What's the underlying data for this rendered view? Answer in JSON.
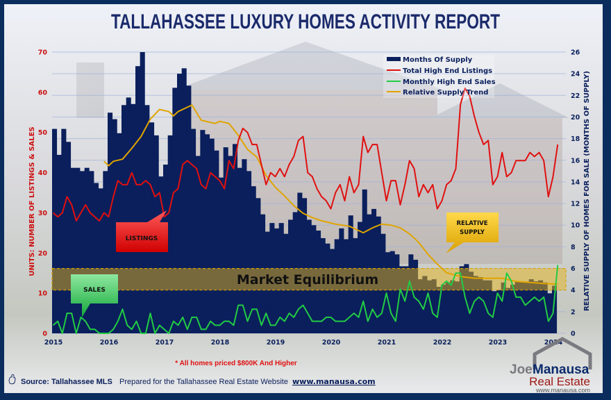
{
  "title": "TALLAHASSEE LUXURY HOMES ACTIVITY REPORT",
  "colors": {
    "frame": "#0b2d5e",
    "bars": "#0a1f5c",
    "listings": "#e01010",
    "sales": "#22cc44",
    "trend": "#e0a400",
    "band": "#e6b41e",
    "left_axis": "#cc1010",
    "right_axis": "#0a1f5c"
  },
  "chart_data": {
    "type": "bar+line",
    "xlabel": "",
    "x_ticks": [
      "2015",
      "2016",
      "2017",
      "2018",
      "2019",
      "2020",
      "2021",
      "2022",
      "2023",
      "2024"
    ],
    "left_axis": {
      "label": "UNITS: NUMBER OF LISTINGS & SALES",
      "ylim": [
        0,
        70
      ],
      "ticks": [
        "0",
        "10",
        "20",
        "30",
        "40",
        "50",
        "60",
        "70"
      ]
    },
    "right_axis": {
      "label": "RELATIVE SUPPLY OF HOMES FOR SALE (MONTHS OF SUPPLY)",
      "ylim": [
        0,
        26
      ],
      "ticks": [
        "0",
        "2",
        "4",
        "6",
        "8",
        "10",
        "12",
        "14",
        "16",
        "18",
        "20",
        "22",
        "24",
        "26"
      ]
    },
    "grid": true,
    "legend_position": "top-right",
    "series": [
      {
        "name": "Months Of Supply",
        "type": "bar",
        "axis": "right",
        "color": "#0a1f5c",
        "values_by_year": {
          "2015": [
            18.9,
            16.5,
            18.9,
            17.7,
            15.3,
            15.3,
            15.0,
            15.3,
            15.0,
            13.9,
            13.4,
            15.0
          ],
          "2016": [
            20.4,
            19.8,
            18.5,
            21.1,
            21.8,
            21.2,
            24.7,
            26.0,
            21.1,
            19.5,
            18.3,
            14.5
          ],
          "2017": [
            15.6,
            18.3,
            22.7,
            24.0,
            24.5,
            22.9,
            18.9,
            16.4,
            18.8,
            18.4,
            18.0,
            16.9
          ],
          "2018": [
            14.4,
            17.2,
            16.4,
            17.5,
            15.3,
            16.1,
            15.0,
            13.6,
            12.5,
            11.0,
            9.4,
            10.2
          ],
          "2019": [
            9.7,
            10.2,
            9.2,
            10.5,
            11.2,
            13.0,
            12.5,
            10.5,
            10.0,
            9.5,
            8.8,
            8.3
          ],
          "2020": [
            7.8,
            8.7,
            9.7,
            8.7,
            10.9,
            8.8,
            10.3,
            13.3,
            11.0,
            11.5,
            10.8,
            9.2
          ],
          "2021": [
            7.5,
            7.6,
            7.3,
            6.2,
            6.2,
            7.3,
            6.8,
            5.0,
            5.3,
            4.9,
            5.0,
            4.3
          ],
          "2022": [
            4.5,
            4.7,
            4.9,
            4.8,
            6.2,
            6.4,
            5.7,
            5.3,
            5.2,
            4.9,
            4.9,
            3.9
          ],
          "2023": [
            4.0,
            4.7,
            4.2,
            4.5,
            4.8,
            4.7,
            4.7,
            5.0,
            4.8,
            4.9,
            4.7,
            3.7
          ],
          "2024": [
            4.4
          ]
        }
      },
      {
        "name": "Total High End Listings",
        "type": "line",
        "axis": "left",
        "color": "#e01010",
        "values_by_year": {
          "2015": [
            30,
            29,
            30,
            34,
            32,
            28,
            30,
            32,
            30,
            29,
            28,
            30
          ],
          "2016": [
            29,
            34,
            38,
            37,
            37,
            40,
            37,
            37,
            38,
            37,
            34,
            35
          ],
          "2017": [
            29,
            30,
            35,
            36,
            42,
            43,
            42,
            41,
            37,
            36,
            40,
            39
          ],
          "2018": [
            38,
            36,
            43,
            41,
            48,
            51,
            50,
            47,
            47,
            42,
            37,
            40
          ],
          "2019": [
            39,
            41,
            39,
            42,
            44,
            48,
            49,
            40,
            39,
            36,
            34,
            33
          ],
          "2020": [
            31,
            35,
            37,
            33,
            39,
            35,
            37,
            49,
            45,
            47,
            47,
            40
          ],
          "2021": [
            33,
            38,
            38,
            32,
            37,
            43,
            41,
            34,
            37,
            35,
            37,
            31
          ],
          "2022": [
            33,
            37,
            38,
            41,
            57,
            61,
            59,
            54,
            50,
            47,
            48,
            37
          ],
          "2023": [
            39,
            45,
            39,
            40,
            43,
            43,
            43,
            45,
            44,
            45,
            43,
            34
          ],
          "2024": [
            39,
            47
          ]
        }
      },
      {
        "name": "Monthly High End Sales",
        "type": "line",
        "axis": "left",
        "color": "#22cc44",
        "values_by_year": {
          "2015": [
            2,
            3,
            0,
            5,
            5,
            0,
            4,
            3,
            1,
            1,
            0,
            0
          ],
          "2016": [
            0,
            1,
            3,
            6,
            2,
            1,
            3,
            0,
            0,
            5,
            0,
            2
          ],
          "2017": [
            1,
            0,
            3,
            2,
            4,
            1,
            4,
            4,
            1,
            1,
            3,
            2
          ],
          "2018": [
            2,
            3,
            3,
            2,
            7,
            7,
            3,
            6,
            6,
            2,
            5,
            2
          ],
          "2019": [
            2,
            4,
            3,
            5,
            4,
            6,
            7,
            5,
            3,
            3,
            3,
            4
          ],
          "2020": [
            4,
            3,
            3,
            3,
            4,
            5,
            4,
            8,
            3,
            6,
            4,
            5
          ],
          "2021": [
            10,
            5,
            3,
            11,
            8,
            13,
            9,
            8,
            6,
            10,
            5,
            4
          ],
          "2022": [
            12,
            13,
            12,
            15,
            15,
            9,
            5,
            8,
            9,
            8,
            5,
            4
          ],
          "2023": [
            10,
            8,
            15,
            13,
            9,
            9,
            7,
            8,
            9,
            8,
            9,
            3
          ],
          "2024": [
            5,
            17
          ]
        }
      },
      {
        "name": "Relative Supply Trend",
        "type": "line",
        "axis": "right",
        "color": "#e0a400",
        "points": [
          [
            "2015-12",
            15.9
          ],
          [
            "2016-01",
            15.5
          ],
          [
            "2016-02",
            15.9
          ],
          [
            "2016-04",
            16.1
          ],
          [
            "2016-06",
            17.1
          ],
          [
            "2016-08",
            18.2
          ],
          [
            "2016-10",
            19.8
          ],
          [
            "2016-12",
            20.7
          ],
          [
            "2017-02",
            20.5
          ],
          [
            "2017-03",
            20.1
          ],
          [
            "2017-04",
            20.5
          ],
          [
            "2017-06",
            20.9
          ],
          [
            "2017-07",
            21.1
          ],
          [
            "2017-09",
            19.7
          ],
          [
            "2017-11",
            19.5
          ],
          [
            "2017-12",
            19.4
          ],
          [
            "2018-01",
            19.6
          ],
          [
            "2018-03",
            19.4
          ],
          [
            "2018-05",
            18.3
          ],
          [
            "2018-07",
            17.0
          ],
          [
            "2018-09",
            16.3
          ],
          [
            "2018-11",
            14.6
          ],
          [
            "2019-01",
            13.5
          ],
          [
            "2019-03",
            12.7
          ],
          [
            "2019-05",
            11.8
          ],
          [
            "2019-07",
            11.1
          ],
          [
            "2019-09",
            10.7
          ],
          [
            "2019-11",
            10.4
          ],
          [
            "2020-02",
            10.1
          ],
          [
            "2020-05",
            9.9
          ],
          [
            "2020-08",
            9.3
          ],
          [
            "2020-10",
            9.75
          ],
          [
            "2020-12",
            10.1
          ],
          [
            "2021-02",
            10.0
          ],
          [
            "2021-04",
            9.75
          ],
          [
            "2021-06",
            9.2
          ],
          [
            "2021-08",
            8.4
          ],
          [
            "2021-10",
            7.3
          ],
          [
            "2021-12",
            6.4
          ],
          [
            "2022-02",
            5.6
          ],
          [
            "2022-05",
            5.25
          ],
          [
            "2022-08",
            5.1
          ],
          [
            "2022-11",
            5.1
          ],
          [
            "2023-02",
            5.1
          ],
          [
            "2023-05",
            4.8
          ],
          [
            "2023-08",
            4.7
          ],
          [
            "2023-11",
            4.6
          ],
          [
            "2024-02",
            4.55
          ]
        ]
      }
    ],
    "equilibrium_band": {
      "label": "Market Equilibrium",
      "axis": "right",
      "range": [
        4,
        6
      ]
    },
    "annotations": {
      "listings": "LISTINGS",
      "sales": "SALES",
      "relative_supply_1": "RELATIVE",
      "relative_supply_2": "SUPPLY"
    }
  },
  "footer": {
    "note": "* All homes priced $800K And Higher",
    "source": "Source: Tallahassee MLS",
    "prepared": "Prepared for the Tallahassee Real Estate Website",
    "website": "www.manausa.com"
  },
  "logo": {
    "line1a": "Joe",
    "line1b": "Manausa",
    "line2": "Real Estate",
    "line3": "www.manausa.com"
  }
}
